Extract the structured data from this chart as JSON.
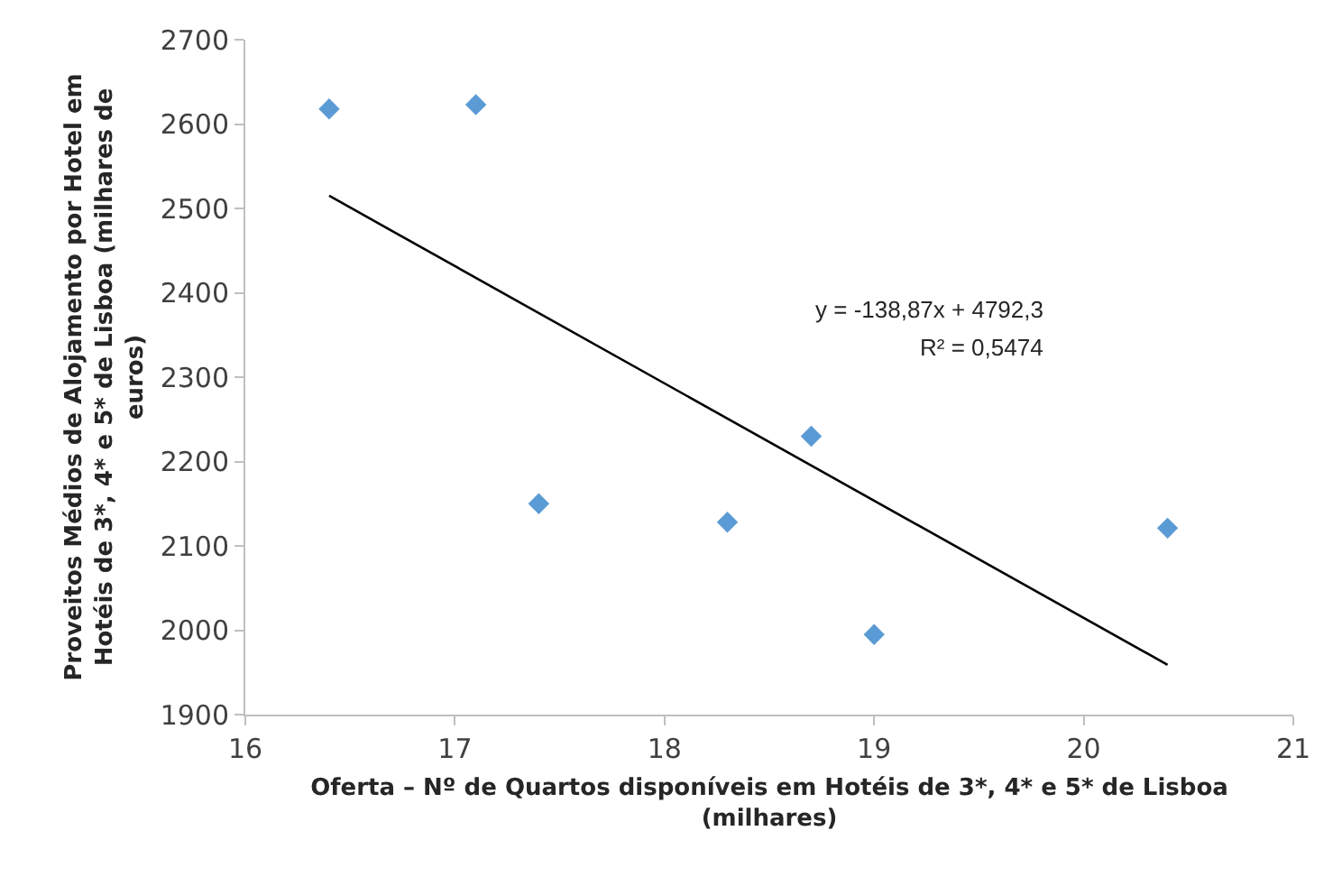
{
  "chart_data": {
    "type": "scatter",
    "xlabel": "Oferta – Nº de Quartos disponíveis em Hotéis de 3*, 4* e 5* de Lisboa (milhares)",
    "ylabel": "Proveitos Médios de Alojamento por Hotel em Hotéis de 3*, 4* e 5* de Lisboa (milhares de euros)",
    "series": [
      {
        "marker": "diamond",
        "color": "#5b9bd5",
        "x": [
          16.4,
          17.1,
          17.4,
          18.3,
          18.7,
          19.0,
          20.4
        ],
        "values": [
          2618,
          2623,
          2150,
          2128,
          2230,
          1995,
          2121
        ]
      },
      {
        "type": "line",
        "color": "#000000",
        "x": [
          16.4,
          20.4
        ],
        "values": [
          2515,
          1959
        ]
      }
    ],
    "annotations": [
      "y = -138,87x + 4792,3",
      "R² = 0,5474"
    ],
    "xlim": [
      16,
      21
    ],
    "xticks": [
      16,
      17,
      18,
      19,
      20,
      21
    ],
    "ylim": [
      1900,
      2700
    ],
    "yticks": [
      1900,
      2000,
      2100,
      2200,
      2300,
      2400,
      2500,
      2600,
      2700
    ]
  }
}
